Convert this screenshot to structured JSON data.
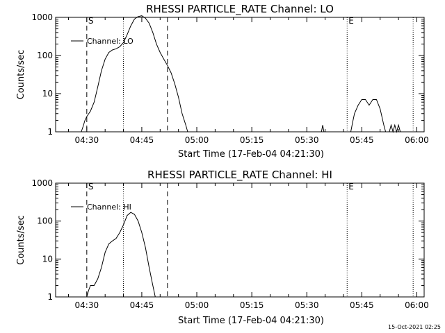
{
  "footer": {
    "timestamp": "15-Oct-2021 02:25"
  },
  "chart_data": [
    {
      "type": "line",
      "title": "RHESSI PARTICLE_RATE Channel: LO",
      "xlabel": "Start Time (17-Feb-04 04:21:30)",
      "ylabel": "Counts/sec",
      "yscale": "log",
      "ylim": [
        1,
        1000
      ],
      "xlim": [
        "04:21:30",
        "06:02:00"
      ],
      "xtick_labels": [
        "04:30",
        "04:45",
        "05:00",
        "05:15",
        "05:30",
        "05:45",
        "06:00"
      ],
      "ytick_labels": [
        "1",
        "10",
        "100",
        "1000"
      ],
      "legend": {
        "position": "top-left"
      },
      "markers": [
        {
          "time": "04:30",
          "style": "dashed",
          "label": "S"
        },
        {
          "time": "04:40",
          "style": "dotted",
          "label": ""
        },
        {
          "time": "04:52",
          "style": "dashed",
          "label": ""
        },
        {
          "time": "05:41",
          "style": "dotted",
          "label": "E"
        },
        {
          "time": "05:59",
          "style": "dotted",
          "label": ""
        }
      ],
      "series": [
        {
          "name": "Channel: LO",
          "segments": [
            [
              [
                "04:28:30",
                1
              ],
              [
                "04:29:00",
                1.4
              ],
              [
                "04:29:30",
                2.0
              ],
              [
                "04:30:00",
                2.5
              ],
              [
                "04:31:00",
                3.5
              ],
              [
                "04:32:00",
                6
              ],
              [
                "04:33:00",
                15
              ],
              [
                "04:34:00",
                40
              ],
              [
                "04:35:00",
                80
              ],
              [
                "04:36:00",
                120
              ],
              [
                "04:37:00",
                140
              ],
              [
                "04:38:00",
                150
              ],
              [
                "04:39:00",
                170
              ],
              [
                "04:40:00",
                220
              ],
              [
                "04:41:00",
                350
              ],
              [
                "04:42:00",
                600
              ],
              [
                "04:43:00",
                900
              ],
              [
                "04:44:00",
                1050
              ],
              [
                "04:45:00",
                1100
              ],
              [
                "04:46:00",
                950
              ],
              [
                "04:47:00",
                700
              ],
              [
                "04:48:00",
                400
              ],
              [
                "04:49:00",
                200
              ],
              [
                "04:50:00",
                120
              ],
              [
                "04:51:00",
                80
              ],
              [
                "04:52:00",
                55
              ],
              [
                "04:53:00",
                35
              ],
              [
                "04:54:00",
                18
              ],
              [
                "04:55:00",
                8
              ],
              [
                "04:56:00",
                3
              ],
              [
                "04:57:00",
                1.5
              ],
              [
                "04:57:30",
                1
              ]
            ],
            [
              [
                "05:34:00",
                1
              ],
              [
                "05:34:20",
                1.5
              ],
              [
                "05:34:40",
                1
              ]
            ],
            [
              [
                "05:42:00",
                1
              ],
              [
                "05:42:30",
                1.8
              ],
              [
                "05:43:00",
                3
              ],
              [
                "05:44:00",
                5
              ],
              [
                "05:45:00",
                7
              ],
              [
                "05:46:00",
                7
              ],
              [
                "05:47:00",
                5
              ],
              [
                "05:48:00",
                7
              ],
              [
                "05:49:00",
                7
              ],
              [
                "05:50:00",
                4
              ],
              [
                "05:51:00",
                1.5
              ],
              [
                "05:51:30",
                1
              ]
            ],
            [
              [
                "05:52:30",
                1
              ],
              [
                "05:53:00",
                1.5
              ],
              [
                "05:53:30",
                1
              ],
              [
                "05:54:00",
                1.5
              ],
              [
                "05:54:30",
                1
              ],
              [
                "05:55:00",
                1.5
              ],
              [
                "05:55:30",
                1
              ]
            ]
          ]
        }
      ]
    },
    {
      "type": "line",
      "title": "RHESSI PARTICLE_RATE Channel: HI",
      "xlabel": "Start Time (17-Feb-04 04:21:30)",
      "ylabel": "Counts/sec",
      "yscale": "log",
      "ylim": [
        1,
        1000
      ],
      "xlim": [
        "04:21:30",
        "06:02:00"
      ],
      "xtick_labels": [
        "04:30",
        "04:45",
        "05:00",
        "05:15",
        "05:30",
        "05:45",
        "06:00"
      ],
      "ytick_labels": [
        "1",
        "10",
        "100",
        "1000"
      ],
      "legend": {
        "position": "top-left"
      },
      "markers": [
        {
          "time": "04:30",
          "style": "dashed",
          "label": "S"
        },
        {
          "time": "04:40",
          "style": "dotted",
          "label": ""
        },
        {
          "time": "04:52",
          "style": "dashed",
          "label": ""
        },
        {
          "time": "05:41",
          "style": "dotted",
          "label": "E"
        },
        {
          "time": "05:59",
          "style": "dotted",
          "label": ""
        }
      ],
      "series": [
        {
          "name": "Channel: HI",
          "segments": [
            [
              [
                "04:30:00",
                1
              ],
              [
                "04:30:30",
                1.5
              ],
              [
                "04:31:00",
                2
              ],
              [
                "04:32:00",
                2
              ],
              [
                "04:33:00",
                3
              ],
              [
                "04:34:00",
                6
              ],
              [
                "04:35:00",
                15
              ],
              [
                "04:36:00",
                25
              ],
              [
                "04:37:00",
                30
              ],
              [
                "04:38:00",
                35
              ],
              [
                "04:39:00",
                50
              ],
              [
                "04:40:00",
                80
              ],
              [
                "04:41:00",
                140
              ],
              [
                "04:42:00",
                170
              ],
              [
                "04:43:00",
                150
              ],
              [
                "04:44:00",
                100
              ],
              [
                "04:45:00",
                50
              ],
              [
                "04:46:00",
                20
              ],
              [
                "04:47:00",
                6
              ],
              [
                "04:48:00",
                2
              ],
              [
                "04:48:40",
                1
              ]
            ]
          ]
        }
      ]
    }
  ]
}
